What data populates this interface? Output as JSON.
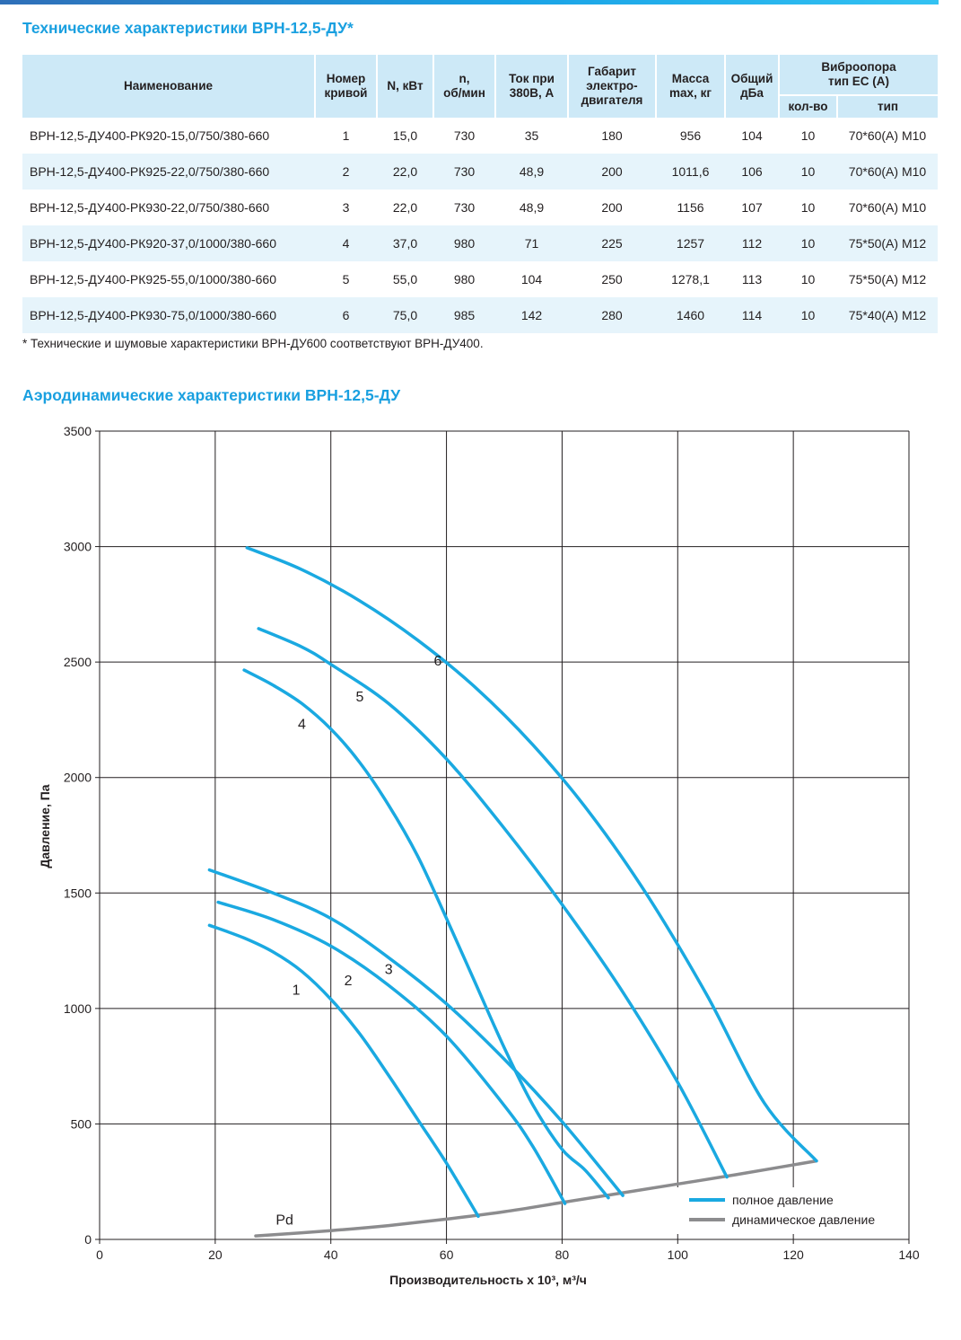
{
  "table_title": "Технические характеристики ВРН-12,5-ДУ*",
  "table": {
    "headers": {
      "name": "Наименование",
      "curve_no": [
        "Номер",
        "кривой"
      ],
      "power": "N, кВт",
      "rpm": [
        "n,",
        "об/мин"
      ],
      "current": [
        "Ток при",
        "380В, А"
      ],
      "motor_size": [
        "Габарит",
        "электро-",
        "двигателя"
      ],
      "mass": [
        "Масса",
        "max, кг"
      ],
      "noise": [
        "Общий",
        "дБа"
      ],
      "vibro": [
        "Виброопора",
        "тип ЕС (А)"
      ],
      "vibro_qty": "кол-во",
      "vibro_type": "тип"
    },
    "rows": [
      [
        "ВРН-12,5-ДУ400-РК920-15,0/750/380-660",
        "1",
        "15,0",
        "730",
        "35",
        "180",
        "956",
        "104",
        "10",
        "70*60(А) М10"
      ],
      [
        "ВРН-12,5-ДУ400-РК925-22,0/750/380-660",
        "2",
        "22,0",
        "730",
        "48,9",
        "200",
        "1011,6",
        "106",
        "10",
        "70*60(А) М10"
      ],
      [
        "ВРН-12,5-ДУ400-РК930-22,0/750/380-660",
        "3",
        "22,0",
        "730",
        "48,9",
        "200",
        "1156",
        "107",
        "10",
        "70*60(А) М10"
      ],
      [
        "ВРН-12,5-ДУ400-РК920-37,0/1000/380-660",
        "4",
        "37,0",
        "980",
        "71",
        "225",
        "1257",
        "112",
        "10",
        "75*50(А) М12"
      ],
      [
        "ВРН-12,5-ДУ400-РК925-55,0/1000/380-660",
        "5",
        "55,0",
        "980",
        "104",
        "250",
        "1278,1",
        "113",
        "10",
        "75*50(А) М12"
      ],
      [
        "ВРН-12,5-ДУ400-РК930-75,0/1000/380-660",
        "6",
        "75,0",
        "985",
        "142",
        "280",
        "1460",
        "114",
        "10",
        "75*40(А) М12"
      ]
    ]
  },
  "footnote": "* Технические и шумовые характеристики ВРН-ДУ600 соответствуют ВРН-ДУ400.",
  "chart_title": "Аэродинамические характеристики ВРН-12,5-ДУ",
  "chart_data": {
    "type": "line",
    "xlabel": "Производительность х 10³, м³/ч",
    "ylabel": "Давление, Па",
    "xlim": [
      0,
      140
    ],
    "ylim": [
      0,
      3500
    ],
    "xticks": [
      0,
      20,
      40,
      60,
      80,
      100,
      120,
      140
    ],
    "yticks": [
      0,
      500,
      1000,
      1500,
      2000,
      2500,
      3000,
      3500
    ],
    "grid": true,
    "legend_position": "bottom-right",
    "legend": [
      {
        "label": "полное давление",
        "color": "#1aa9e1"
      },
      {
        "label": "динамическое давление",
        "color": "#8c8c8e"
      }
    ],
    "series": [
      {
        "name": "1",
        "kind": "full",
        "color": "#1aa9e1",
        "label_at": [
          34,
          1060
        ],
        "points": [
          [
            19,
            1360
          ],
          [
            25,
            1305
          ],
          [
            30,
            1245
          ],
          [
            35,
            1160
          ],
          [
            40,
            1040
          ],
          [
            45,
            890
          ],
          [
            50,
            710
          ],
          [
            55,
            520
          ],
          [
            60,
            330
          ],
          [
            65.5,
            100
          ]
        ]
      },
      {
        "name": "2",
        "kind": "full",
        "color": "#1aa9e1",
        "label_at": [
          43,
          1100
        ],
        "points": [
          [
            20.5,
            1460
          ],
          [
            30,
            1385
          ],
          [
            40,
            1270
          ],
          [
            50,
            1100
          ],
          [
            60,
            880
          ],
          [
            70,
            580
          ],
          [
            75,
            400
          ],
          [
            80.5,
            155
          ]
        ]
      },
      {
        "name": "3",
        "kind": "full",
        "color": "#1aa9e1",
        "label_at": [
          50,
          1150
        ],
        "points": [
          [
            19,
            1600
          ],
          [
            30,
            1500
          ],
          [
            40,
            1390
          ],
          [
            50,
            1220
          ],
          [
            60,
            1020
          ],
          [
            70,
            780
          ],
          [
            80,
            510
          ],
          [
            90.5,
            190
          ]
        ]
      },
      {
        "name": "4",
        "kind": "full",
        "color": "#1aa9e1",
        "label_at": [
          35,
          2210
        ],
        "points": [
          [
            25,
            2465
          ],
          [
            30,
            2400
          ],
          [
            35,
            2320
          ],
          [
            40,
            2210
          ],
          [
            45,
            2065
          ],
          [
            50,
            1880
          ],
          [
            55,
            1660
          ],
          [
            60,
            1390
          ],
          [
            65,
            1110
          ],
          [
            70,
            830
          ],
          [
            75,
            580
          ],
          [
            80,
            390
          ],
          [
            84,
            300
          ],
          [
            88,
            180
          ]
        ]
      },
      {
        "name": "5",
        "kind": "full",
        "color": "#1aa9e1",
        "label_at": [
          45,
          2330
        ],
        "points": [
          [
            27.5,
            2645
          ],
          [
            35,
            2565
          ],
          [
            40,
            2490
          ],
          [
            50,
            2320
          ],
          [
            60,
            2080
          ],
          [
            70,
            1780
          ],
          [
            80,
            1450
          ],
          [
            90,
            1090
          ],
          [
            100,
            680
          ],
          [
            108.5,
            270
          ]
        ]
      },
      {
        "name": "6",
        "kind": "full",
        "color": "#1aa9e1",
        "label_at": [
          58.5,
          2485
        ],
        "points": [
          [
            25.5,
            2995
          ],
          [
            35,
            2900
          ],
          [
            45,
            2765
          ],
          [
            55,
            2595
          ],
          [
            65,
            2390
          ],
          [
            75,
            2140
          ],
          [
            85,
            1840
          ],
          [
            95,
            1480
          ],
          [
            105,
            1060
          ],
          [
            115,
            590
          ],
          [
            124,
            340
          ]
        ]
      },
      {
        "name": "Pd",
        "kind": "dynamic",
        "color": "#8c8c8e",
        "label_at": [
          32,
          65
        ],
        "points": [
          [
            27,
            15
          ],
          [
            40,
            38
          ],
          [
            50,
            60
          ],
          [
            60,
            88
          ],
          [
            70,
            120
          ],
          [
            80,
            160
          ],
          [
            90,
            200
          ],
          [
            100,
            240
          ],
          [
            110,
            280
          ],
          [
            124,
            340
          ]
        ]
      }
    ]
  }
}
